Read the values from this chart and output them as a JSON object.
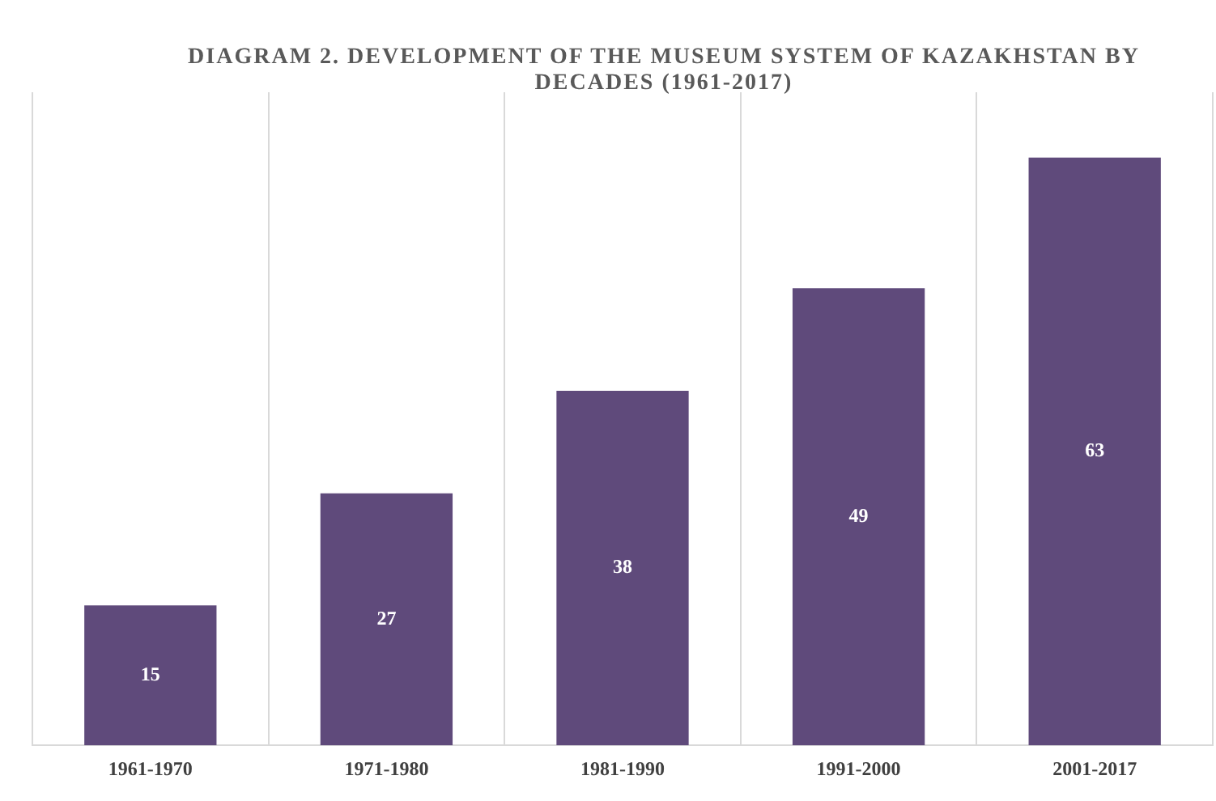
{
  "chart_data": {
    "type": "bar",
    "title": "DIAGRAM 2. DEVELOPMENT OF THE MUSEUM SYSTEM OF KAZAKHSTAN BY DECADES (1961-2017)",
    "categories": [
      "1961-1970",
      "1971-1980",
      "1981-1990",
      "1991-2000",
      "2001-2017"
    ],
    "values": [
      15,
      27,
      38,
      49,
      63
    ],
    "color": "#5f4a7b",
    "data_labels": true,
    "grid": "x",
    "legend": false
  }
}
